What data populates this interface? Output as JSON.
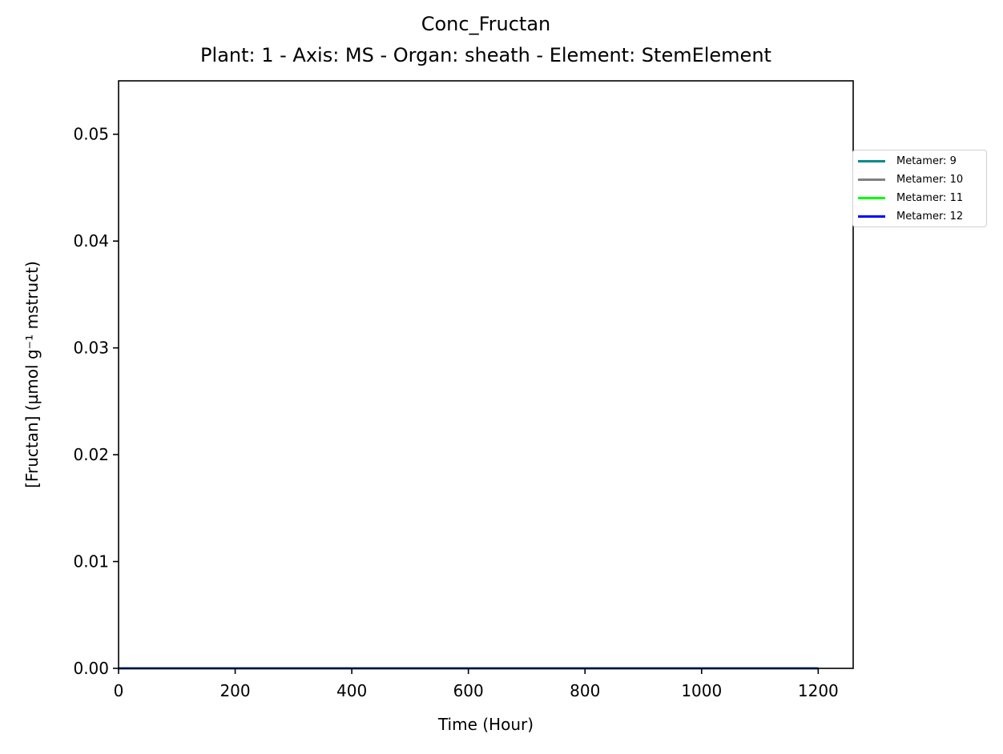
{
  "chart_data": {
    "type": "line",
    "title": "Conc_Fructan",
    "subtitle": "Plant: 1 - Axis: MS - Organ: sheath - Element: StemElement",
    "xlabel": "Time (Hour)",
    "ylabel": "[Fructan] (µmol g⁻¹ mstruct)",
    "xlim": [
      0,
      1260
    ],
    "ylim": [
      0,
      0.055
    ],
    "x_ticks": [
      0,
      200,
      400,
      600,
      800,
      1000,
      1200
    ],
    "y_ticks": [
      0.0,
      0.01,
      0.02,
      0.03,
      0.04,
      0.05
    ],
    "x_tick_labels": [
      "0",
      "200",
      "400",
      "600",
      "800",
      "1000",
      "1200"
    ],
    "y_tick_labels": [
      "0.00",
      "0.01",
      "0.02",
      "0.03",
      "0.04",
      "0.05"
    ],
    "grid": false,
    "legend_position": "outside right, upper",
    "series": [
      {
        "name": "Metamer: 9",
        "color": "#008b8b",
        "x": [
          0,
          1200
        ],
        "y": [
          0,
          0
        ]
      },
      {
        "name": "Metamer: 10",
        "color": "#808080",
        "x": [
          0,
          1200
        ],
        "y": [
          0,
          0
        ]
      },
      {
        "name": "Metamer: 11",
        "color": "#00ff00",
        "x": [
          0,
          1200
        ],
        "y": [
          0,
          0
        ]
      },
      {
        "name": "Metamer: 12",
        "color": "#0000ff",
        "x": [
          0,
          1200
        ],
        "y": [
          0,
          0
        ]
      }
    ]
  }
}
